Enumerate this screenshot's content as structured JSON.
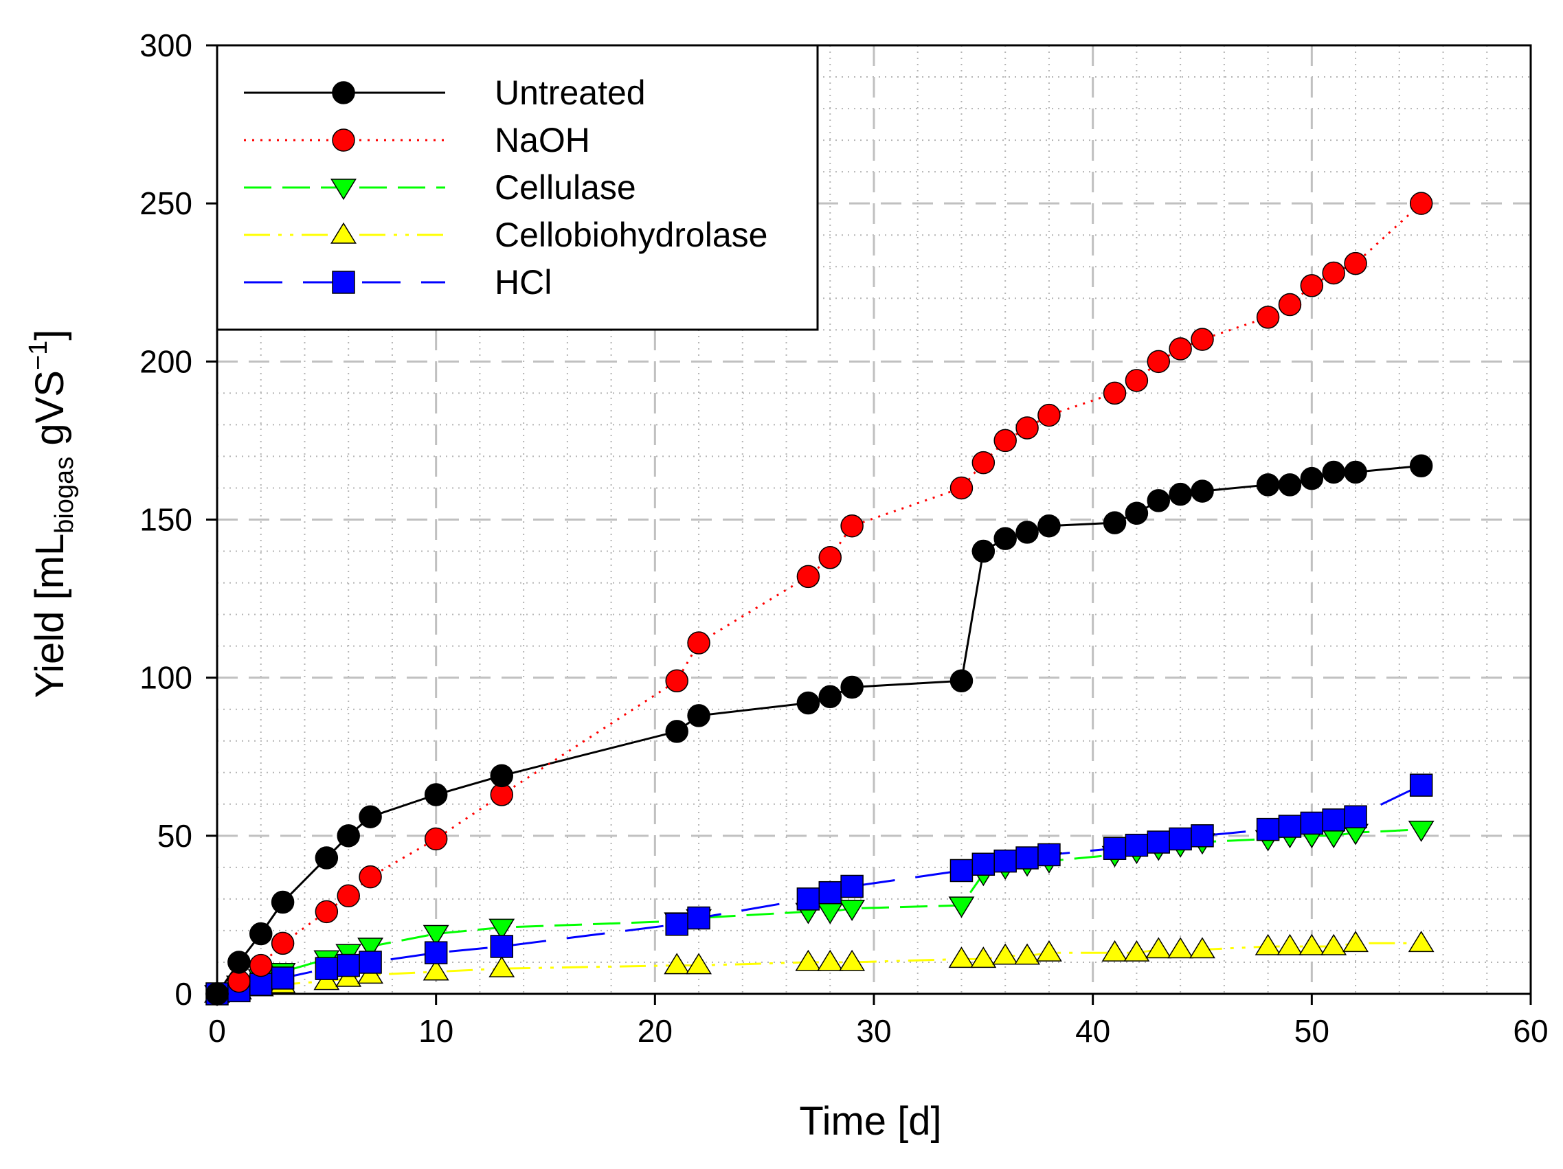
{
  "chart_data": {
    "type": "line",
    "title": "",
    "xlabel": "Time [d]",
    "ylabel": {
      "main": "Yield [mL",
      "sub": "biogas",
      "mid": " gVS",
      "sup": "−1",
      "end": "]"
    },
    "xlim": [
      0,
      60
    ],
    "ylim": [
      0,
      300
    ],
    "xticks": [
      0,
      10,
      20,
      30,
      40,
      50,
      60
    ],
    "yticks": [
      0,
      50,
      100,
      150,
      200,
      250,
      300
    ],
    "grid": true,
    "legend_position": "top-left",
    "series": [
      {
        "name": "Untreated",
        "color": "#000000",
        "marker": "circle",
        "line": "solid",
        "x": [
          0,
          1,
          2,
          3,
          5,
          6,
          7,
          10,
          13,
          21,
          22,
          27,
          28,
          29,
          34,
          35,
          36,
          37,
          38,
          41,
          42,
          43,
          44,
          45,
          48,
          49,
          50,
          51,
          52,
          55
        ],
        "y": [
          0,
          10,
          19,
          29,
          43,
          50,
          56,
          63,
          69,
          83,
          88,
          92,
          94,
          97,
          99,
          140,
          144,
          146,
          148,
          149,
          152,
          156,
          158,
          159,
          161,
          161,
          163,
          165,
          165,
          167
        ]
      },
      {
        "name": "NaOH",
        "color": "#ff0000",
        "marker": "circle",
        "line": "dotted",
        "x": [
          0,
          1,
          2,
          3,
          5,
          6,
          7,
          10,
          13,
          21,
          22,
          27,
          28,
          29,
          34,
          35,
          36,
          37,
          38,
          41,
          42,
          43,
          44,
          45,
          48,
          49,
          50,
          51,
          52,
          55
        ],
        "y": [
          0,
          4,
          9,
          16,
          26,
          31,
          37,
          49,
          63,
          99,
          111,
          132,
          138,
          148,
          160,
          168,
          175,
          179,
          183,
          190,
          194,
          200,
          204,
          207,
          214,
          218,
          224,
          228,
          231,
          250
        ]
      },
      {
        "name": "Cellulase",
        "color": "#00ff00",
        "marker": "triangle-down",
        "line": "dashed",
        "x": [
          0,
          1,
          2,
          3,
          5,
          6,
          7,
          10,
          13,
          21,
          22,
          27,
          28,
          29,
          34,
          35,
          36,
          37,
          38,
          41,
          42,
          43,
          44,
          45,
          48,
          49,
          50,
          51,
          52,
          55
        ],
        "y": [
          0,
          3,
          5,
          7,
          11,
          13,
          15,
          19,
          21,
          23,
          24,
          26,
          26,
          27,
          28,
          38,
          40,
          41,
          42,
          44,
          45,
          46,
          47,
          48,
          49,
          50,
          50,
          50,
          51,
          52
        ]
      },
      {
        "name": "Cellobiohydrolase",
        "color": "#ffff00",
        "marker": "triangle-up",
        "line": "dashdotdot",
        "x": [
          0,
          1,
          2,
          3,
          5,
          6,
          7,
          10,
          13,
          21,
          22,
          27,
          28,
          29,
          34,
          35,
          36,
          37,
          38,
          41,
          42,
          43,
          44,
          45,
          48,
          49,
          50,
          51,
          52,
          55
        ],
        "y": [
          0,
          1,
          2,
          3,
          4,
          5,
          6,
          7,
          8,
          9,
          9,
          10,
          10,
          10,
          11,
          11,
          12,
          12,
          13,
          13,
          13,
          14,
          14,
          14,
          15,
          15,
          15,
          15,
          16,
          16
        ]
      },
      {
        "name": "HCl",
        "color": "#0000ff",
        "marker": "square",
        "line": "longdash",
        "x": [
          0,
          1,
          2,
          3,
          5,
          6,
          7,
          10,
          13,
          21,
          22,
          27,
          28,
          29,
          34,
          35,
          36,
          37,
          38,
          41,
          42,
          43,
          44,
          45,
          48,
          49,
          50,
          51,
          52,
          55
        ],
        "y": [
          0,
          1,
          3,
          5,
          8,
          9,
          10,
          13,
          15,
          22,
          24,
          30,
          32,
          34,
          39,
          41,
          42,
          43,
          44,
          46,
          47,
          48,
          49,
          50,
          52,
          53,
          54,
          55,
          56,
          66
        ]
      }
    ]
  }
}
